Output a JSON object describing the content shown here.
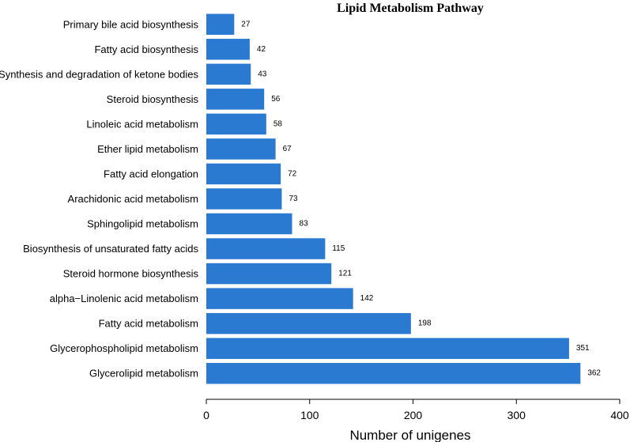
{
  "chart_data": {
    "type": "bar",
    "orientation": "horizontal",
    "title": "Lipid Metabolism Pathway",
    "xlabel": "Number of unigenes",
    "ylabel": "",
    "xlim": [
      0,
      400
    ],
    "xticks": [
      0,
      100,
      200,
      300,
      400
    ],
    "grid": false,
    "bar_color": "#2a7ad2",
    "categories": [
      "Primary bile acid biosynthesis",
      "Fatty acid biosynthesis",
      "Synthesis and degradation of ketone bodies",
      "Steroid biosynthesis",
      "Linoleic acid metabolism",
      "Ether lipid metabolism",
      "Fatty acid elongation",
      "Arachidonic acid metabolism",
      "Sphingolipid metabolism",
      "Biosynthesis of unsaturated fatty acids",
      "Steroid hormone biosynthesis",
      "alpha−Linolenic acid metabolism",
      "Fatty acid metabolism",
      "Glycerophospholipid metabolism",
      "Glycerolipid metabolism"
    ],
    "values": [
      27,
      42,
      43,
      56,
      58,
      67,
      72,
      73,
      83,
      115,
      121,
      142,
      198,
      351,
      362
    ]
  }
}
